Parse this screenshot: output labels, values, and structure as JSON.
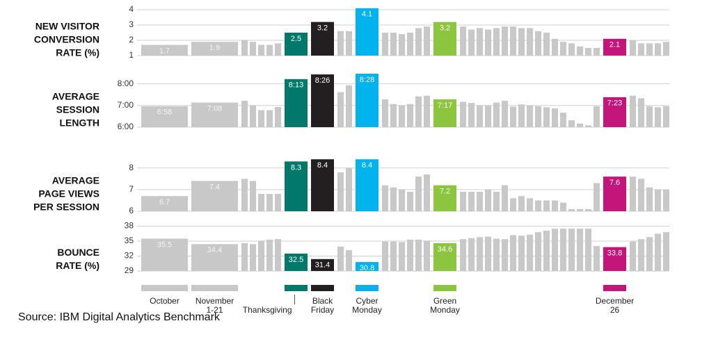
{
  "x_axis": {
    "categories": [
      "October",
      "November 1-21",
      null,
      null,
      null,
      null,
      null,
      "Thanksgiving",
      "Black Friday",
      null,
      null,
      "Cyber Monday",
      null,
      null,
      null,
      null,
      null,
      null,
      "Green Monday",
      null,
      null,
      null,
      null,
      null,
      null,
      null,
      null,
      null,
      null,
      null,
      null,
      null,
      null,
      null,
      null,
      null,
      "December 26",
      null,
      null,
      null,
      null,
      null
    ],
    "colors": [
      "#c8c8c8",
      "#c8c8c8",
      "#c8c8c8",
      "#c8c8c8",
      "#c8c8c8",
      "#c8c8c8",
      "#c8c8c8",
      "#00796b",
      "#231f20",
      "#c8c8c8",
      "#c8c8c8",
      "#00b3ec",
      "#c8c8c8",
      "#c8c8c8",
      "#c8c8c8",
      "#c8c8c8",
      "#c8c8c8",
      "#c8c8c8",
      "#8cc63f",
      "#c8c8c8",
      "#c8c8c8",
      "#c8c8c8",
      "#c8c8c8",
      "#c8c8c8",
      "#c8c8c8",
      "#c8c8c8",
      "#c8c8c8",
      "#c8c8c8",
      "#c8c8c8",
      "#c8c8c8",
      "#c8c8c8",
      "#c8c8c8",
      "#c8c8c8",
      "#c8c8c8",
      "#c8c8c8",
      "#c8c8c8",
      "#c4157a",
      "#c8c8c8",
      "#c8c8c8",
      "#c8c8c8",
      "#c8c8c8",
      "#c8c8c8"
    ]
  },
  "chart_data": [
    {
      "type": "bar",
      "title": "NEW VISITOR CONVERSION RATE (%)",
      "values": [
        1.7,
        1.9,
        2.0,
        1.9,
        1.7,
        1.7,
        1.8,
        2.5,
        3.2,
        2.6,
        2.6,
        4.1,
        2.5,
        2.5,
        2.4,
        2.5,
        2.8,
        2.9,
        3.2,
        2.9,
        2.7,
        2.8,
        2.7,
        2.8,
        2.9,
        2.9,
        2.8,
        2.8,
        2.6,
        2.5,
        2.1,
        1.9,
        1.8,
        1.6,
        1.5,
        1.5,
        2.1,
        2.0,
        1.8,
        1.8,
        1.8,
        1.9
      ],
      "ylim": [
        1,
        4.2
      ],
      "yticks": [
        1,
        2,
        3,
        4
      ],
      "grid": true
    },
    {
      "type": "bar",
      "title": "AVERAGE SESSION LENGTH",
      "values": [
        418,
        428,
        433,
        420,
        407,
        407,
        416,
        493,
        506,
        457,
        476,
        508,
        437,
        424,
        420,
        424,
        445,
        447,
        437,
        430,
        427,
        420,
        420,
        428,
        433,
        417,
        423,
        420,
        418,
        415,
        412,
        400,
        379,
        370,
        365,
        418,
        443,
        447,
        440,
        418,
        415,
        418
      ],
      "value_labels": [
        "6:58",
        "7:08",
        null,
        null,
        null,
        null,
        null,
        "8:13",
        "8:26",
        null,
        null,
        "8:28",
        null,
        null,
        null,
        null,
        null,
        null,
        "7:17",
        null,
        null,
        null,
        null,
        null,
        null,
        null,
        null,
        null,
        null,
        null,
        null,
        null,
        null,
        null,
        null,
        null,
        "7:23",
        null,
        null,
        null,
        null,
        null
      ],
      "ylim": [
        360,
        510
      ],
      "yticks": [
        {
          "value": 360,
          "label": "6:00"
        },
        {
          "value": 420,
          "label": "7:00"
        },
        {
          "value": 480,
          "label": "8:00"
        }
      ],
      "grid": true
    },
    {
      "type": "bar",
      "title": "AVERAGE PAGE VIEWS PER SESSION",
      "values": [
        6.7,
        7.4,
        7.5,
        7.4,
        6.8,
        6.8,
        6.8,
        8.3,
        8.4,
        7.8,
        8.0,
        8.4,
        7.2,
        7.1,
        7.0,
        6.9,
        7.6,
        7.7,
        7.2,
        6.9,
        6.9,
        6.9,
        7.0,
        6.9,
        7.2,
        6.6,
        6.7,
        6.6,
        6.5,
        6.5,
        6.5,
        6.4,
        6.1,
        6.1,
        6.1,
        7.3,
        7.6,
        7.6,
        7.5,
        7.1,
        7.0,
        7.0
      ],
      "ylim": [
        6,
        8.6
      ],
      "yticks": [
        6,
        7,
        8
      ],
      "grid": true
    },
    {
      "type": "bar",
      "title": "BOUNCE RATE (%)",
      "values": [
        35.5,
        34.4,
        34.6,
        34.4,
        35.1,
        35.3,
        35.4,
        32.5,
        31.4,
        33.9,
        33.2,
        30.8,
        34.9,
        34.9,
        34.8,
        35.3,
        35.3,
        35.1,
        34.6,
        35.4,
        35.6,
        35.8,
        35.9,
        35.5,
        35.4,
        36.2,
        36.1,
        36.3,
        36.8,
        37.1,
        37.5,
        37.5,
        37.5,
        37.5,
        37.5,
        34.0,
        33.8,
        34.9,
        35.4,
        35.8,
        36.5,
        36.8
      ],
      "ylim": [
        29,
        38
      ],
      "yticks": [
        29,
        32,
        35,
        38
      ],
      "grid": true
    }
  ],
  "source": "Source: IBM Digital Analytics Benchmark"
}
